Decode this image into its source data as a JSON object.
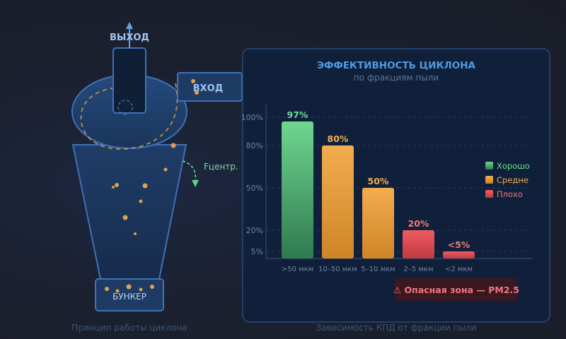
{
  "diagram": {
    "label_out": "ВЫХОД",
    "label_in": "ВХОД",
    "label_force": "Fцентр.",
    "label_bunker": "БУНКЕР",
    "caption": "Принцип работы циклона"
  },
  "panel": {
    "caption": "Зависимость КПД от фракции пыли",
    "danger_label": "⚠ Опасная зона — PM2.5"
  },
  "colors": {
    "good": "#52c47a",
    "medium": "#e8a23c",
    "bad": "#e04e55",
    "title": "#4d9be6",
    "accent_particle": "#e0a050"
  },
  "chart_data": {
    "type": "bar",
    "title": "ЭФФЕКТИВНОСТЬ ЦИКЛОНА",
    "subtitle": "по фракциям пыли",
    "categories": [
      ">50 мкм",
      "10–50 мкм",
      "5–10 мкм",
      "2–5 мкм",
      "<2 мкм"
    ],
    "values": [
      97,
      80,
      50,
      20,
      5
    ],
    "value_labels": [
      "97%",
      "80%",
      "50%",
      "20%",
      "<5%"
    ],
    "classes": [
      "good",
      "medium",
      "medium",
      "bad",
      "bad"
    ],
    "y_ticks": [
      5,
      20,
      50,
      80,
      100
    ],
    "y_tick_labels": [
      "5%",
      "20%",
      "50%",
      "80%",
      "100%"
    ],
    "ylim": [
      0,
      100
    ],
    "grid": true,
    "legend": [
      {
        "key": "good",
        "label": "Хорошо"
      },
      {
        "key": "medium",
        "label": "Средне"
      },
      {
        "key": "bad",
        "label": "Плохо"
      }
    ],
    "legend_position": "right"
  }
}
